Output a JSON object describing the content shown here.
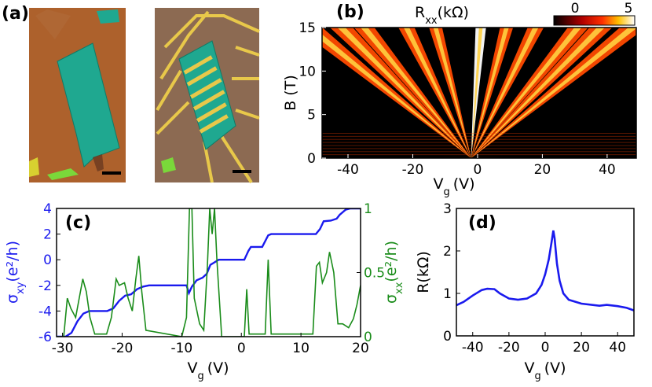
{
  "panels": {
    "a": {
      "label": "(a)"
    },
    "b": {
      "label": "(b)"
    },
    "c": {
      "label": "(c)"
    },
    "d": {
      "label": "(d)"
    }
  },
  "colors": {
    "blue": "#1a1aee",
    "green": "#1a8c1a",
    "black": "#000000",
    "flake": "#1fa890",
    "gold": "#e8c84a",
    "substrate_left": "#a45a2a",
    "substrate_right": "#8c6a52"
  },
  "chart_data": [
    {
      "panel": "b",
      "type": "heatmap",
      "title": "R",
      "title_sub": "xx",
      "title_unit": "(kΩ)",
      "colorbar": {
        "min": 0,
        "max": 5,
        "ticks": [
          "0",
          "5"
        ],
        "colormap": "hot"
      },
      "xlabel": "V",
      "xlabel_sub": "g",
      "xlabel_unit": "(V)",
      "ylabel": "B (T)",
      "xlim": [
        -48,
        49
      ],
      "ylim": [
        0,
        15
      ],
      "xticks": [
        -40,
        -20,
        0,
        20,
        40
      ],
      "yticks": [
        0,
        5,
        10,
        15
      ],
      "fan_center_vg": -2,
      "fan_slopes_v_per_t": [
        -3.33,
        -2.67,
        -2.2,
        -1.33,
        -0.73,
        0.2,
        0.73,
        1.33,
        2.2,
        2.67,
        3.33
      ]
    },
    {
      "panel": "c",
      "type": "line",
      "xlabel": "V",
      "xlabel_sub": "g",
      "xlabel_unit": "(V)",
      "xlim": [
        -31,
        20
      ],
      "xticks": [
        -30,
        -20,
        -10,
        0,
        10,
        20
      ],
      "y_left": {
        "label": "σ",
        "sub": "xy",
        "unit": "(e²/h)",
        "lim": [
          -6,
          4
        ],
        "ticks": [
          -6,
          -4,
          -2,
          0,
          2,
          4
        ]
      },
      "y_right": {
        "label": "σ",
        "sub": "xx",
        "unit": "(e²/h)",
        "lim": [
          0,
          1
        ],
        "ticks": [
          "0",
          "0.5",
          "1"
        ]
      },
      "series": [
        {
          "axis": "left",
          "points": [
            [
              -31,
              -6
            ],
            [
              -29.5,
              -6
            ],
            [
              -28.5,
              -5.7
            ],
            [
              -27.5,
              -4.8
            ],
            [
              -26.5,
              -4.2
            ],
            [
              -25.5,
              -4.0
            ],
            [
              -22.5,
              -4.0
            ],
            [
              -21.5,
              -3.8
            ],
            [
              -20.5,
              -3.2
            ],
            [
              -19.5,
              -2.8
            ],
            [
              -18.5,
              -2.7
            ],
            [
              -17.5,
              -2.3
            ],
            [
              -16.5,
              -2.1
            ],
            [
              -15.5,
              -2.0
            ],
            [
              -9.2,
              -2.0
            ],
            [
              -8.8,
              -2.6
            ],
            [
              -8.3,
              -2.1
            ],
            [
              -7.5,
              -1.6
            ],
            [
              -6.5,
              -1.4
            ],
            [
              -5.8,
              -1.1
            ],
            [
              -5.2,
              -0.4
            ],
            [
              -4.5,
              -0.2
            ],
            [
              -3.8,
              0.0
            ],
            [
              0.5,
              0.0
            ],
            [
              1.2,
              0.7
            ],
            [
              1.6,
              1.0
            ],
            [
              3.5,
              1.0
            ],
            [
              4.5,
              1.9
            ],
            [
              5.0,
              2.0
            ],
            [
              12.5,
              2.0
            ],
            [
              13.2,
              2.4
            ],
            [
              13.8,
              3.0
            ],
            [
              15.0,
              3.05
            ],
            [
              16.0,
              3.2
            ],
            [
              16.5,
              3.5
            ],
            [
              17.5,
              3.9
            ],
            [
              18.3,
              4.0
            ],
            [
              20,
              4.0
            ]
          ]
        },
        {
          "axis": "right",
          "points": [
            [
              -31,
              0
            ],
            [
              -29.8,
              0.0
            ],
            [
              -29.2,
              0.3
            ],
            [
              -28.6,
              0.22
            ],
            [
              -27.8,
              0.15
            ],
            [
              -26.6,
              0.45
            ],
            [
              -26.0,
              0.35
            ],
            [
              -25.4,
              0.15
            ],
            [
              -24.6,
              0.02
            ],
            [
              -22.6,
              0.02
            ],
            [
              -21.8,
              0.15
            ],
            [
              -21.0,
              0.45
            ],
            [
              -20.5,
              0.4
            ],
            [
              -19.6,
              0.42
            ],
            [
              -19.0,
              0.3
            ],
            [
              -18.3,
              0.2
            ],
            [
              -17.7,
              0.45
            ],
            [
              -17.2,
              0.63
            ],
            [
              -16.7,
              0.35
            ],
            [
              -16.0,
              0.05
            ],
            [
              -10.0,
              0.0
            ],
            [
              -9.2,
              0.15
            ],
            [
              -8.7,
              1.0
            ],
            [
              -8.3,
              1.0
            ],
            [
              -7.9,
              0.3
            ],
            [
              -7.0,
              0.1
            ],
            [
              -6.3,
              0.05
            ],
            [
              -5.7,
              0.55
            ],
            [
              -5.3,
              1.0
            ],
            [
              -4.9,
              0.8
            ],
            [
              -4.5,
              1.0
            ],
            [
              -4.1,
              0.6
            ],
            [
              -3.3,
              0.0
            ],
            [
              0.5,
              0.0
            ],
            [
              0.9,
              0.37
            ],
            [
              1.3,
              0.02
            ],
            [
              4.0,
              0.02
            ],
            [
              4.5,
              0.6
            ],
            [
              5.0,
              0.02
            ],
            [
              12.0,
              0.02
            ],
            [
              12.6,
              0.55
            ],
            [
              13.1,
              0.58
            ],
            [
              13.6,
              0.42
            ],
            [
              14.3,
              0.5
            ],
            [
              14.8,
              0.66
            ],
            [
              15.5,
              0.5
            ],
            [
              16.2,
              0.1
            ],
            [
              17.0,
              0.1
            ],
            [
              18.0,
              0.07
            ],
            [
              18.8,
              0.14
            ],
            [
              19.4,
              0.25
            ],
            [
              20,
              0.4
            ]
          ]
        }
      ]
    },
    {
      "panel": "d",
      "type": "line",
      "xlabel": "V",
      "xlabel_sub": "g",
      "xlabel_unit": "(V)",
      "ylabel": "R(kΩ)",
      "xlim": [
        -49,
        49
      ],
      "ylim": [
        0,
        3
      ],
      "xticks": [
        -40,
        -20,
        0,
        20,
        40
      ],
      "yticks": [
        0,
        1,
        2,
        3
      ],
      "series": [
        {
          "points": [
            [
              -49,
              0.72
            ],
            [
              -45,
              0.8
            ],
            [
              -40,
              0.95
            ],
            [
              -35,
              1.08
            ],
            [
              -32,
              1.11
            ],
            [
              -28,
              1.1
            ],
            [
              -25,
              1.0
            ],
            [
              -20,
              0.88
            ],
            [
              -15,
              0.85
            ],
            [
              -10,
              0.88
            ],
            [
              -5,
              1.0
            ],
            [
              -2,
              1.2
            ],
            [
              0,
              1.45
            ],
            [
              2,
              1.8
            ],
            [
              3.5,
              2.2
            ],
            [
              4.5,
              2.48
            ],
            [
              5.2,
              2.3
            ],
            [
              6.5,
              1.7
            ],
            [
              8,
              1.3
            ],
            [
              10,
              1.0
            ],
            [
              13,
              0.85
            ],
            [
              20,
              0.76
            ],
            [
              30,
              0.71
            ],
            [
              34,
              0.73
            ],
            [
              40,
              0.7
            ],
            [
              45,
              0.66
            ],
            [
              49,
              0.6
            ]
          ]
        }
      ]
    }
  ]
}
